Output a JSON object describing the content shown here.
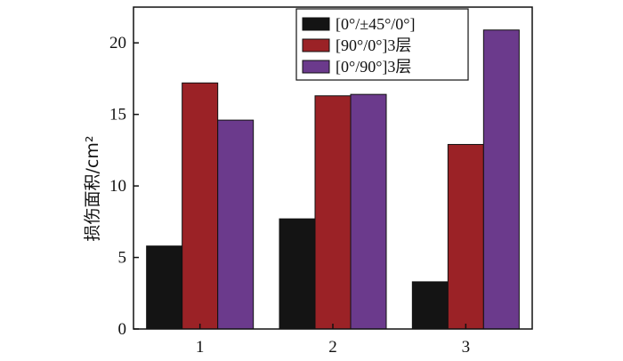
{
  "chart_data": {
    "type": "bar",
    "categories": [
      "1",
      "2",
      "3"
    ],
    "series": [
      {
        "name": "[0°/±45°/0°]",
        "values": [
          5.8,
          7.7,
          3.3
        ],
        "color": "#141414"
      },
      {
        "name": "[90°/0°]3层",
        "values": [
          17.2,
          16.3,
          12.9
        ],
        "color": "#9b2226"
      },
      {
        "name": "[0°/90°]3层",
        "values": [
          14.6,
          16.4,
          20.9
        ],
        "color": "#6b3a8c"
      }
    ],
    "xlabel": "",
    "ylabel": "损伤面积/cm²",
    "ylim": [
      0,
      22.5
    ],
    "yticks": [
      "0",
      "5",
      "10",
      "15",
      "20"
    ],
    "legend_position": "top-right",
    "grid": false
  }
}
